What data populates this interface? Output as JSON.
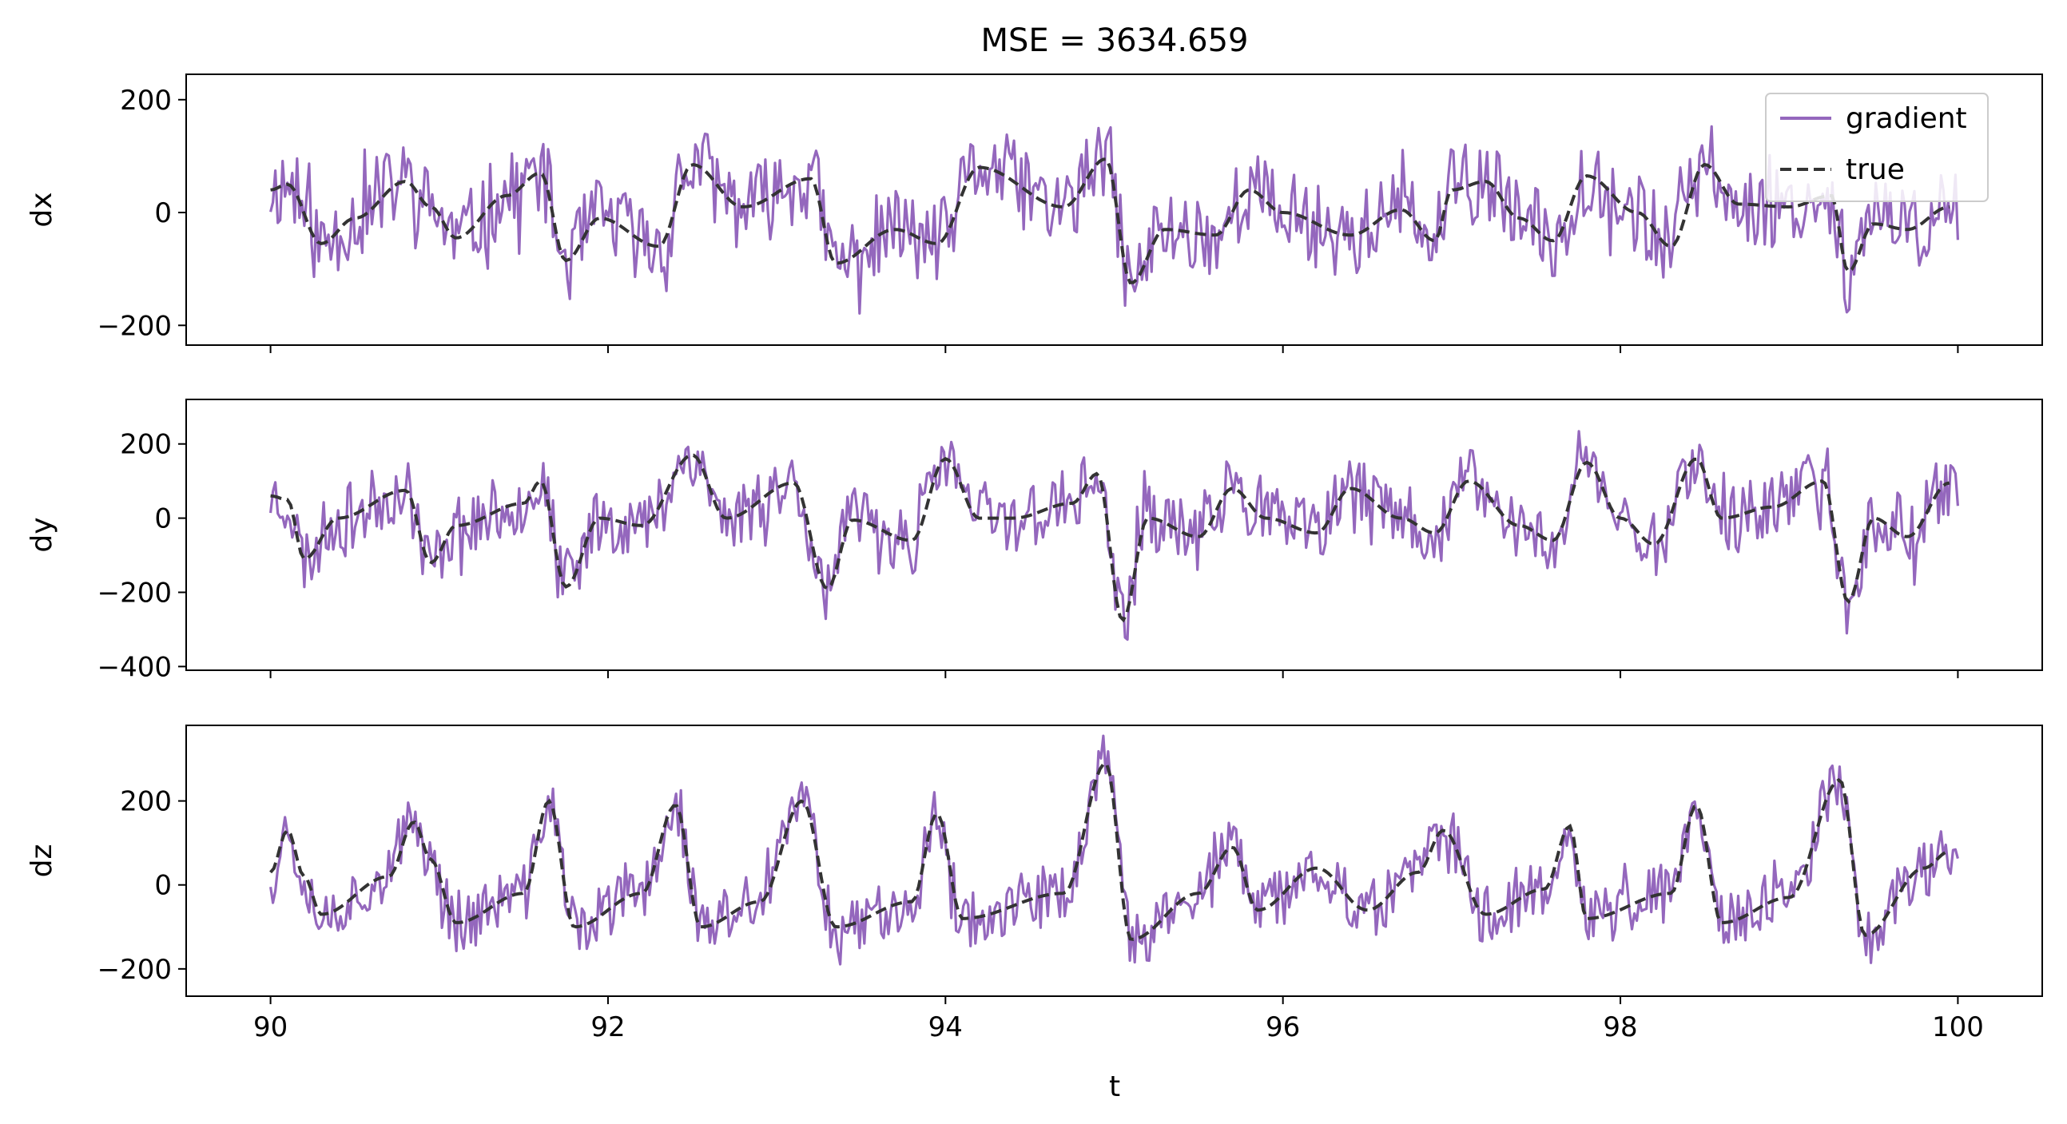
{
  "title": "MSE = 3634.659",
  "xlabel": "t",
  "colors": {
    "gradient": "#9467bd",
    "true": "#333333",
    "frame": "#000000"
  },
  "legend": {
    "placement": "upper-right",
    "entries": [
      "gradient",
      "true"
    ]
  },
  "chart_data": [
    {
      "type": "line",
      "panel": "dx",
      "ylabel": "dx",
      "xlim": [
        89.5,
        100.5
      ],
      "ylim": [
        -235,
        245
      ],
      "yticks": [
        -200,
        0,
        200
      ],
      "ytick_labels": [
        "−200",
        "0",
        "200"
      ],
      "xticks": [
        90,
        92,
        94,
        96,
        98,
        100
      ],
      "xtick_labels": [],
      "true_series": {
        "name": "true",
        "x": [
          90.0,
          90.1,
          90.3,
          90.5,
          90.8,
          90.95,
          91.1,
          91.4,
          91.6,
          91.75,
          91.95,
          92.3,
          92.5,
          92.8,
          93.2,
          93.35,
          93.7,
          93.95,
          94.2,
          94.7,
          94.95,
          95.1,
          95.3,
          95.6,
          95.8,
          96.0,
          96.4,
          96.7,
          96.9,
          97.0,
          97.2,
          97.4,
          97.6,
          97.8,
          98.1,
          98.3,
          98.5,
          98.7,
          99.0,
          99.25,
          99.35,
          99.5,
          99.7,
          99.95
        ],
        "y": [
          40,
          50,
          -55,
          -10,
          55,
          10,
          -45,
          30,
          70,
          -85,
          -10,
          -60,
          85,
          10,
          60,
          -90,
          -30,
          -55,
          80,
          10,
          95,
          -125,
          -30,
          -40,
          40,
          0,
          -40,
          5,
          -50,
          40,
          55,
          -10,
          -50,
          65,
          0,
          -60,
          85,
          15,
          10,
          30,
          -105,
          -20,
          -30,
          10
        ]
      },
      "gradient_series": {
        "name": "gradient",
        "noise_amplitude": 75,
        "seed": 11,
        "n_points": 700
      }
    },
    {
      "type": "line",
      "panel": "dy",
      "ylabel": "dy",
      "xlim": [
        89.5,
        100.5
      ],
      "ylim": [
        -410,
        320
      ],
      "yticks": [
        -400,
        -200,
        0,
        200
      ],
      "ytick_labels": [
        "−400",
        "−200",
        "0",
        "200"
      ],
      "xticks": [
        90,
        92,
        94,
        96,
        98,
        100
      ],
      "xtick_labels": [],
      "true_series": {
        "name": "true",
        "x": [
          90.0,
          90.1,
          90.2,
          90.4,
          90.8,
          90.95,
          91.1,
          91.5,
          91.6,
          91.75,
          91.95,
          92.2,
          92.5,
          92.7,
          93.1,
          93.3,
          93.45,
          93.8,
          94.0,
          94.2,
          94.4,
          94.75,
          94.9,
          95.05,
          95.2,
          95.5,
          95.7,
          95.9,
          96.2,
          96.4,
          96.7,
          96.9,
          97.1,
          97.4,
          97.6,
          97.8,
          98.0,
          98.2,
          98.45,
          98.6,
          98.9,
          99.2,
          99.35,
          99.5,
          99.7,
          99.95
        ],
        "y": [
          60,
          50,
          -110,
          0,
          75,
          -120,
          -20,
          40,
          100,
          -185,
          0,
          -20,
          170,
          0,
          95,
          -190,
          -5,
          -60,
          160,
          0,
          0,
          40,
          120,
          -275,
          0,
          -50,
          80,
          0,
          -40,
          80,
          0,
          -40,
          100,
          -20,
          -60,
          150,
          0,
          -70,
          160,
          0,
          30,
          100,
          -225,
          0,
          -50,
          95
        ]
      },
      "gradient_series": {
        "name": "gradient",
        "noise_amplitude": 90,
        "seed": 23,
        "n_points": 700
      }
    },
    {
      "type": "line",
      "panel": "dz",
      "ylabel": "dz",
      "xlim": [
        89.5,
        100.5
      ],
      "ylim": [
        -265,
        380
      ],
      "yticks": [
        -200,
        0,
        200
      ],
      "ytick_labels": [
        "−200",
        "0",
        "200"
      ],
      "xticks": [
        90,
        92,
        94,
        96,
        98,
        100
      ],
      "xtick_labels": [
        "90",
        "92",
        "94",
        "96",
        "98",
        "100"
      ],
      "true_series": {
        "name": "true",
        "x": [
          90.0,
          90.1,
          90.2,
          90.3,
          90.7,
          90.85,
          90.95,
          91.1,
          91.5,
          91.65,
          91.8,
          92.2,
          92.4,
          92.55,
          92.9,
          93.15,
          93.35,
          93.8,
          93.95,
          94.1,
          94.7,
          94.95,
          95.1,
          95.5,
          95.7,
          95.85,
          96.2,
          96.5,
          96.8,
          96.95,
          97.2,
          97.55,
          97.7,
          97.8,
          98.3,
          98.45,
          98.6,
          99.0,
          99.3,
          99.45,
          99.8,
          99.95
        ],
        "y": [
          30,
          130,
          20,
          -70,
          20,
          150,
          60,
          -90,
          -20,
          200,
          -100,
          -20,
          190,
          -100,
          -40,
          200,
          -100,
          -40,
          170,
          -80,
          -20,
          290,
          -130,
          -20,
          90,
          -60,
          40,
          -60,
          30,
          130,
          -70,
          -10,
          140,
          -80,
          -20,
          190,
          -90,
          -30,
          250,
          -120,
          40,
          80
        ]
      },
      "gradient_series": {
        "name": "gradient",
        "noise_amplitude": 70,
        "seed": 37,
        "n_points": 700
      }
    }
  ]
}
